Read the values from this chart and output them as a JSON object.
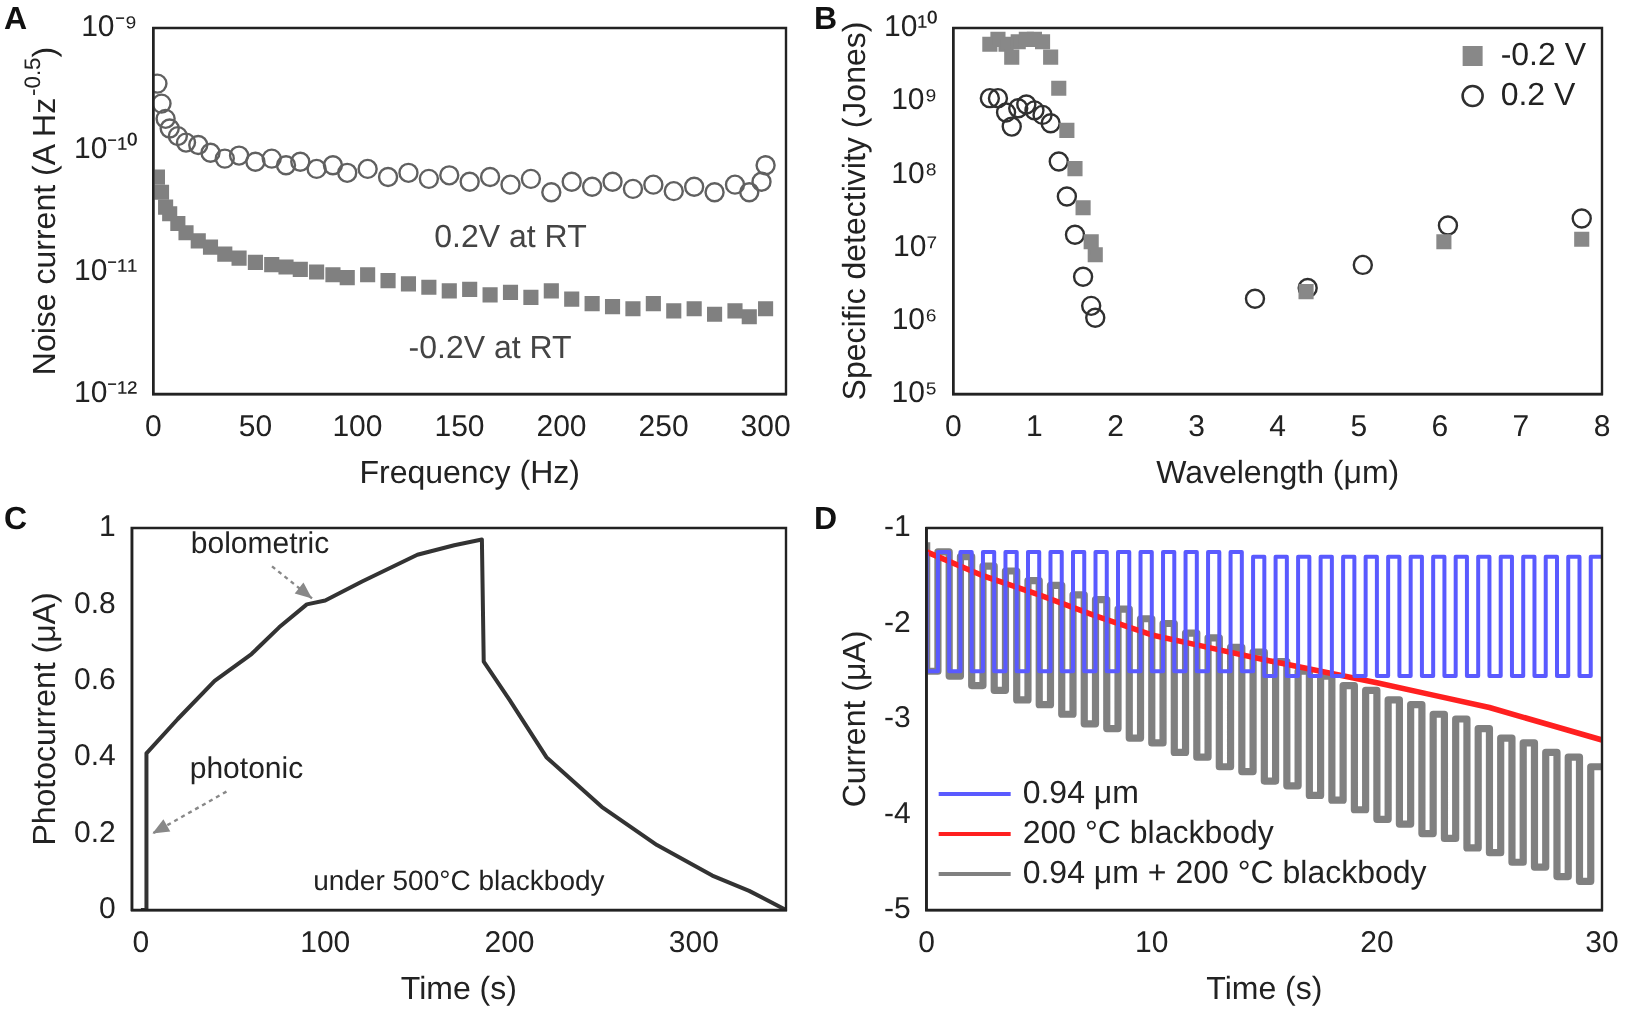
{
  "chart_data": [
    {
      "type": "scatter",
      "title": "A",
      "xlabel": "Frequency (Hz)",
      "ylabel": "Noise current (A Hz$^{-0.5}$)",
      "log": "y",
      "xlim": [
        0,
        310
      ],
      "xticks": [
        0,
        50,
        100,
        150,
        200,
        250,
        300
      ],
      "ylim": [
        1e-12,
        1e-09
      ],
      "yticks": [
        {
          "value": 1e-12,
          "label": "10⁻¹²"
        },
        {
          "value": 1e-11,
          "label": "10⁻¹¹"
        },
        {
          "value": 1e-10,
          "label": "10⁻¹⁰"
        },
        {
          "value": 1e-09,
          "label": "10⁻⁹"
        }
      ],
      "series": [
        {
          "name": "0.2V at RT",
          "color": "#606060",
          "marker": "circle",
          "x": [
            2,
            4,
            6,
            8,
            12,
            16,
            22,
            28,
            35,
            42,
            50,
            58,
            65,
            72,
            80,
            88,
            95,
            105,
            115,
            125,
            135,
            145,
            155,
            165,
            175,
            185,
            195,
            205,
            215,
            225,
            235,
            245,
            255,
            265,
            275,
            285,
            292,
            298,
            300
          ],
          "values": [
            3.5e-10,
            2.4e-10,
            1.8e-10,
            1.5e-10,
            1.3e-10,
            1.15e-10,
            1.1e-10,
            9.5e-11,
            8.5e-11,
            9e-11,
            8e-11,
            8.5e-11,
            7.5e-11,
            8e-11,
            7e-11,
            7.5e-11,
            6.5e-11,
            7e-11,
            6e-11,
            6.5e-11,
            5.8e-11,
            6.2e-11,
            5.5e-11,
            6e-11,
            5.2e-11,
            5.8e-11,
            4.5e-11,
            5.5e-11,
            5e-11,
            5.5e-11,
            4.8e-11,
            5.2e-11,
            4.6e-11,
            5e-11,
            4.5e-11,
            5.2e-11,
            4.5e-11,
            5.5e-11,
            7.5e-11
          ]
        },
        {
          "name": "-0.2V at RT",
          "color": "#808080",
          "marker": "square",
          "x": [
            2,
            4,
            6,
            8,
            12,
            16,
            22,
            28,
            35,
            42,
            50,
            58,
            65,
            72,
            80,
            88,
            95,
            105,
            115,
            125,
            135,
            145,
            155,
            165,
            175,
            185,
            195,
            205,
            215,
            225,
            235,
            245,
            255,
            265,
            275,
            285,
            292,
            300
          ],
          "values": [
            6e-11,
            4.5e-11,
            3.4e-11,
            3e-11,
            2.5e-11,
            2.1e-11,
            1.8e-11,
            1.6e-11,
            1.4e-11,
            1.3e-11,
            1.2e-11,
            1.15e-11,
            1.1e-11,
            1.05e-11,
            1e-11,
            9.5e-12,
            9e-12,
            9.5e-12,
            8.5e-12,
            8e-12,
            7.5e-12,
            7e-12,
            7.2e-12,
            6.5e-12,
            6.8e-12,
            6.2e-12,
            7e-12,
            6e-12,
            5.5e-12,
            5.2e-12,
            5e-12,
            5.5e-12,
            4.8e-12,
            5e-12,
            4.5e-12,
            4.8e-12,
            4.3e-12,
            5e-12
          ]
        }
      ]
    },
    {
      "type": "scatter",
      "title": "B",
      "xlabel": "Wavelength (μm)",
      "ylabel": "Specific detectivity (Jones)",
      "log": "y",
      "legend": "top right",
      "xlim": [
        0,
        8
      ],
      "xticks": [
        0,
        1,
        2,
        3,
        4,
        5,
        6,
        7,
        8
      ],
      "ylim": [
        100000.0,
        10000000000.0
      ],
      "yticks": [
        {
          "value": 100000.0,
          "label": "10⁵"
        },
        {
          "value": 1000000.0,
          "label": "10⁶"
        },
        {
          "value": 10000000.0,
          "label": "10⁷"
        },
        {
          "value": 100000000.0,
          "label": "10⁸"
        },
        {
          "value": 1000000000.0,
          "label": "10⁹"
        },
        {
          "value": 10000000000.0,
          "label": "10¹⁰"
        }
      ],
      "series": [
        {
          "name": "-0.2 V",
          "color": "#888888",
          "marker": "square",
          "x": [
            0.45,
            0.55,
            0.65,
            0.72,
            0.8,
            0.9,
            1.0,
            1.1,
            1.2,
            1.3,
            1.4,
            1.5,
            1.6,
            1.7,
            1.75,
            4.35,
            6.05,
            7.75
          ],
          "values": [
            6000000000.0,
            7000000000.0,
            6000000000.0,
            4000000000.0,
            6500000000.0,
            7000000000.0,
            7000000000.0,
            6500000000.0,
            4000000000.0,
            1500000000.0,
            400000000.0,
            120000000.0,
            35000000.0,
            12000000.0,
            8000000.0,
            2500000.0,
            12000000.0,
            13000000.0
          ]
        },
        {
          "name": "0.2 V",
          "color": "#303030",
          "marker": "circle",
          "x": [
            0.45,
            0.55,
            0.65,
            0.72,
            0.8,
            0.9,
            1.0,
            1.1,
            1.2,
            1.3,
            1.4,
            1.5,
            1.6,
            1.7,
            1.75,
            3.72,
            4.37,
            5.05,
            6.1,
            7.75
          ],
          "values": [
            1100000000.0,
            1100000000.0,
            700000000.0,
            450000000.0,
            800000000.0,
            900000000.0,
            750000000.0,
            650000000.0,
            500000000.0,
            150000000.0,
            50000000.0,
            15000000.0,
            4000000.0,
            1600000.0,
            1100000.0,
            2000000.0,
            2800000.0,
            5800000.0,
            20000000.0,
            25000000.0
          ]
        }
      ]
    },
    {
      "type": "line",
      "title": "C",
      "xlabel": "Time (s)",
      "ylabel": "Photocurrent (μA)",
      "marker": "none",
      "xlim": [
        -5,
        350
      ],
      "xticks": [
        0,
        100,
        200,
        300
      ],
      "ylim": [
        0,
        1
      ],
      "yticks": [
        0,
        0.2,
        0.4,
        0.6,
        0.8,
        1
      ],
      "annotations": [
        {
          "text": "bolometric",
          "x": 95,
          "y": 0.8
        },
        {
          "text": "photonic",
          "x": 3,
          "y": 0.2
        },
        "under 500°C blackbody"
      ],
      "series": [
        {
          "color": "#333333",
          "x": [
            0,
            3,
            3,
            20,
            40,
            60,
            75,
            90,
            100,
            120,
            150,
            170,
            185,
            186,
            200,
            220,
            250,
            280,
            310,
            330,
            350
          ],
          "values": [
            0,
            0,
            0.41,
            0.5,
            0.6,
            0.67,
            0.74,
            0.8,
            0.81,
            0.86,
            0.93,
            0.955,
            0.97,
            0.65,
            0.55,
            0.4,
            0.27,
            0.17,
            0.09,
            0.05,
            0
          ]
        }
      ]
    },
    {
      "type": "line",
      "title": "D",
      "xlabel": "Time (s)",
      "ylabel": "Current (μA)",
      "marker": "none",
      "legend": "bottom left",
      "xlim": [
        0,
        30
      ],
      "xticks": [
        0,
        10,
        20,
        30
      ],
      "ylim": [
        -5,
        -1
      ],
      "yticks": [
        -5,
        -4,
        -3,
        -2,
        -1
      ],
      "series": [
        {
          "name": "0.94 μm",
          "type": "step",
          "color": "#5a5aff",
          "x": [
            0,
            0.5,
            1,
            1.5,
            2,
            2.5,
            3,
            3.5,
            4,
            4.5,
            5,
            5.5,
            6,
            6.5,
            7,
            7.5,
            8,
            8.5,
            9,
            9.5,
            10,
            10.5,
            11,
            11.5,
            12,
            12.5,
            13,
            13.5,
            14,
            14.5,
            15,
            15.5,
            16,
            16.5,
            17,
            17.5,
            18,
            18.5,
            19,
            19.5,
            20,
            20.5,
            21,
            21.5,
            22,
            22.5,
            23,
            23.5,
            24,
            24.5,
            25,
            25.5,
            26,
            26.5,
            27,
            27.5,
            28,
            28.5,
            29,
            29.5,
            30
          ],
          "values": [
            -1.25,
            -2.5,
            -1.25,
            -2.5,
            -1.25,
            -2.5,
            -1.25,
            -2.5,
            -1.25,
            -2.5,
            -1.25,
            -2.5,
            -1.25,
            -2.5,
            -1.25,
            -2.5,
            -1.25,
            -2.5,
            -1.25,
            -2.5,
            -1.25,
            -2.5,
            -1.25,
            -2.5,
            -1.25,
            -2.5,
            -1.25,
            -2.5,
            -1.25,
            -2.5,
            -1.3,
            -2.55,
            -1.3,
            -2.55,
            -1.3,
            -2.55,
            -1.3,
            -2.55,
            -1.3,
            -2.55,
            -1.3,
            -2.55,
            -1.3,
            -2.55,
            -1.3,
            -2.55,
            -1.3,
            -2.55,
            -1.3,
            -2.55,
            -1.3,
            -2.55,
            -1.3,
            -2.55,
            -1.3,
            -2.55,
            -1.3,
            -2.55,
            -1.3,
            -2.55,
            -1.3
          ]
        },
        {
          "name": "200 °C blackbody",
          "color": "#ff2020",
          "x": [
            0,
            2.5,
            5,
            7.5,
            10,
            12.5,
            15,
            17.5,
            20,
            22.5,
            25,
            27.5,
            30
          ],
          "values": [
            -1.25,
            -1.5,
            -1.7,
            -1.92,
            -2.12,
            -2.25,
            -2.38,
            -2.5,
            -2.62,
            -2.75,
            -2.88,
            -3.05,
            -3.22
          ]
        },
        {
          "name": "0.94 μm + 200 °C blackbody",
          "type": "step",
          "color": "#808080",
          "x": [
            0,
            0.5,
            1,
            1.5,
            2,
            2.5,
            3,
            3.5,
            4,
            4.5,
            5,
            5.5,
            6,
            6.5,
            7,
            7.5,
            8,
            8.5,
            9,
            9.5,
            10,
            10.5,
            11,
            11.5,
            12,
            12.5,
            13,
            13.5,
            14,
            14.5,
            15,
            15.5,
            16,
            16.5,
            17,
            17.5,
            18,
            18.5,
            19,
            19.5,
            20,
            20.5,
            21,
            21.5,
            22,
            22.5,
            23,
            23.5,
            24,
            24.5,
            25,
            25.5,
            26,
            26.5,
            27,
            27.5,
            28,
            28.5,
            29,
            29.5,
            30
          ],
          "values": [
            -1.15,
            -2.5,
            -1.25,
            -2.55,
            -1.3,
            -2.65,
            -1.4,
            -2.7,
            -1.45,
            -2.8,
            -1.55,
            -2.85,
            -1.6,
            -2.95,
            -1.7,
            -3.05,
            -1.75,
            -3.1,
            -1.85,
            -3.2,
            -1.95,
            -3.25,
            -2.0,
            -3.35,
            -2.1,
            -3.4,
            -2.15,
            -3.5,
            -2.25,
            -3.55,
            -2.3,
            -3.65,
            -2.4,
            -3.7,
            -2.5,
            -3.8,
            -2.55,
            -3.85,
            -2.65,
            -3.95,
            -2.7,
            -4.05,
            -2.8,
            -4.1,
            -2.85,
            -4.2,
            -2.95,
            -4.25,
            -3.0,
            -4.35,
            -3.1,
            -4.4,
            -3.2,
            -4.5,
            -3.25,
            -4.55,
            -3.35,
            -4.65,
            -3.4,
            -4.7,
            -3.5
          ]
        }
      ]
    }
  ]
}
